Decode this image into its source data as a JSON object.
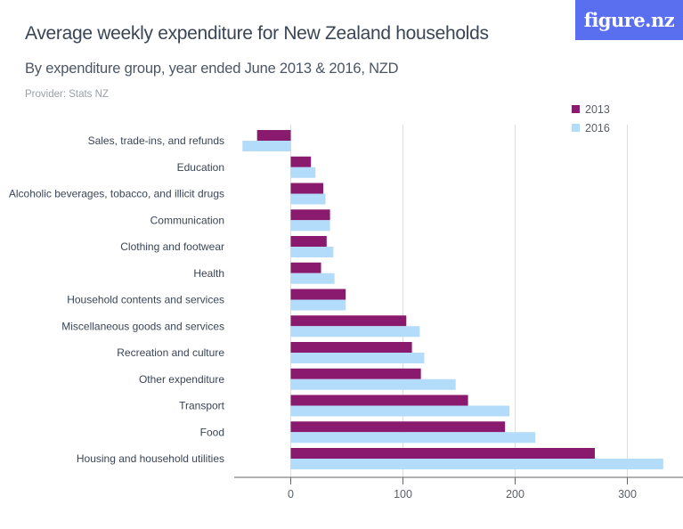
{
  "header": {
    "title": "Average weekly expenditure for New Zealand households",
    "subtitle": "By expenditure group, year ended June 2013 & 2016, NZD",
    "provider": "Provider: Stats NZ",
    "logo": "figure.nz"
  },
  "colors": {
    "series_2013": "#8a1a6e",
    "series_2016": "#b3dcfb",
    "grid": "#dddddd",
    "axis": "#666666"
  },
  "chart_data": {
    "type": "bar",
    "orientation": "horizontal",
    "title": "Average weekly expenditure for New Zealand households",
    "subtitle": "By expenditure group, year ended June 2013 & 2016, NZD",
    "xlabel": "",
    "ylabel": "",
    "xlim": [
      -50,
      335
    ],
    "xticks": [
      0,
      100,
      200,
      300
    ],
    "grid": true,
    "legend_position": "top-right",
    "categories": [
      "Sales, trade-ins, and refunds",
      "Education",
      "Alcoholic beverages, tobacco, and illicit drugs",
      "Communication",
      "Clothing and footwear",
      "Health",
      "Household contents and services",
      "Miscellaneous goods and services",
      "Recreation and culture",
      "Other expenditure",
      "Transport",
      "Food",
      "Housing and household utilities"
    ],
    "series": [
      {
        "name": "2013",
        "values": [
          -30,
          18,
          29,
          35,
          32,
          27,
          49,
          103,
          108,
          116,
          158,
          191,
          271
        ]
      },
      {
        "name": "2016",
        "values": [
          -43,
          22,
          31,
          35,
          38,
          39,
          49,
          115,
          119,
          147,
          195,
          218,
          332
        ]
      }
    ]
  }
}
